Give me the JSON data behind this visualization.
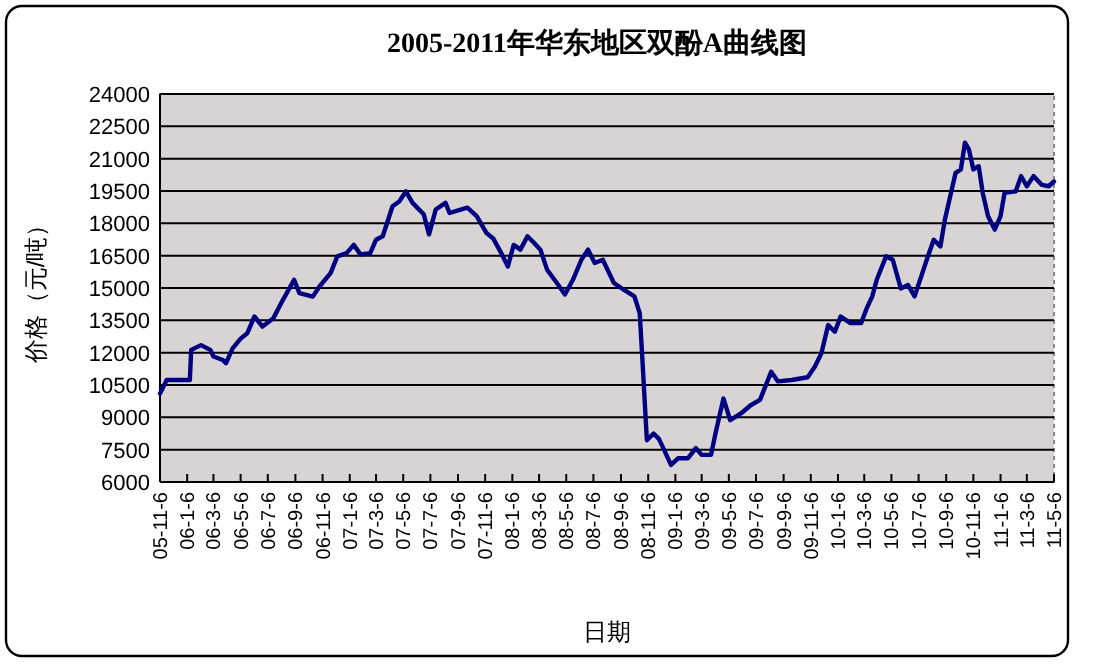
{
  "chart_data": {
    "type": "line",
    "title": "2005-2011年华东地区双酚A曲线图",
    "xlabel": "日期",
    "ylabel": "价格（元/吨）",
    "xlim": [
      "2005-11-06",
      "2011-05-06"
    ],
    "xticks": [
      {
        "value": "2005-11-06",
        "label": "05-11-6"
      },
      {
        "value": "2006-01-06",
        "label": "06-1-6"
      },
      {
        "value": "2006-03-06",
        "label": "06-3-6"
      },
      {
        "value": "2006-05-06",
        "label": "06-5-6"
      },
      {
        "value": "2006-07-06",
        "label": "06-7-6"
      },
      {
        "value": "2006-09-06",
        "label": "06-9-6"
      },
      {
        "value": "2006-11-06",
        "label": "06-11-6"
      },
      {
        "value": "2007-01-06",
        "label": "07-1-6"
      },
      {
        "value": "2007-03-06",
        "label": "07-3-6"
      },
      {
        "value": "2007-05-06",
        "label": "07-5-6"
      },
      {
        "value": "2007-07-06",
        "label": "07-7-6"
      },
      {
        "value": "2007-09-06",
        "label": "07-9-6"
      },
      {
        "value": "2007-11-06",
        "label": "07-11-6"
      },
      {
        "value": "2008-01-06",
        "label": "08-1-6"
      },
      {
        "value": "2008-03-06",
        "label": "08-3-6"
      },
      {
        "value": "2008-05-06",
        "label": "08-5-6"
      },
      {
        "value": "2008-07-06",
        "label": "08-7-6"
      },
      {
        "value": "2008-09-06",
        "label": "08-9-6"
      },
      {
        "value": "2008-11-06",
        "label": "08-11-6"
      },
      {
        "value": "2009-01-06",
        "label": "09-1-6"
      },
      {
        "value": "2009-03-06",
        "label": "09-3-6"
      },
      {
        "value": "2009-05-06",
        "label": "09-5-6"
      },
      {
        "value": "2009-07-06",
        "label": "09-7-6"
      },
      {
        "value": "2009-09-06",
        "label": "09-9-6"
      },
      {
        "value": "2009-11-06",
        "label": "09-11-6"
      },
      {
        "value": "2010-01-06",
        "label": "10-1-6"
      },
      {
        "value": "2010-03-06",
        "label": "10-3-6"
      },
      {
        "value": "2010-05-06",
        "label": "10-5-6"
      },
      {
        "value": "2010-07-06",
        "label": "10-7-6"
      },
      {
        "value": "2010-09-06",
        "label": "10-9-6"
      },
      {
        "value": "2010-11-06",
        "label": "10-11-6"
      },
      {
        "value": "2011-01-06",
        "label": "11-1-6"
      },
      {
        "value": "2011-03-06",
        "label": "11-3-6"
      },
      {
        "value": "2011-05-06",
        "label": "11-5-6"
      }
    ],
    "ylim": [
      6000,
      24000
    ],
    "yticks": [
      6000,
      7500,
      9000,
      10500,
      12000,
      13500,
      15000,
      16500,
      18000,
      19500,
      21000,
      22500,
      24000
    ],
    "grid": "y",
    "marker": "none",
    "line_style": "solid",
    "series": [
      {
        "color": "#000080",
        "x": [
          "2005-11-06",
          "2005-11-21",
          "2006-01-12",
          "2006-01-15",
          "2006-02-06",
          "2006-02-27",
          "2006-03-06",
          "2006-03-27",
          "2006-04-03",
          "2006-04-18",
          "2006-05-06",
          "2006-05-21",
          "2006-06-06",
          "2006-06-24",
          "2006-07-18",
          "2006-08-09",
          "2006-09-03",
          "2006-09-15",
          "2006-10-15",
          "2006-10-30",
          "2006-11-24",
          "2006-12-09",
          "2006-12-30",
          "2007-01-15",
          "2007-01-30",
          "2007-02-21",
          "2007-03-06",
          "2007-03-21",
          "2007-04-12",
          "2007-04-27",
          "2007-05-12",
          "2007-05-27",
          "2007-06-21",
          "2007-07-03",
          "2007-07-18",
          "2007-08-09",
          "2007-08-18",
          "2007-09-12",
          "2007-09-27",
          "2007-10-18",
          "2007-11-09",
          "2007-11-24",
          "2007-12-12",
          "2007-12-27",
          "2008-01-09",
          "2008-01-24",
          "2008-02-09",
          "2008-02-24",
          "2008-03-09",
          "2008-03-24",
          "2008-04-15",
          "2008-05-03",
          "2008-05-21",
          "2008-06-09",
          "2008-06-24",
          "2008-07-09",
          "2008-07-27",
          "2008-08-21",
          "2008-09-12",
          "2008-10-06",
          "2008-10-18",
          "2008-10-24",
          "2008-11-03",
          "2008-11-18",
          "2008-11-30",
          "2008-12-12",
          "2008-12-27",
          "2009-01-12",
          "2009-02-03",
          "2009-02-21",
          "2009-03-06",
          "2009-03-27",
          "2009-04-06",
          "2009-04-24",
          "2009-05-09",
          "2009-06-03",
          "2009-06-24",
          "2009-07-15",
          "2009-08-09",
          "2009-08-24",
          "2009-09-24",
          "2009-10-30",
          "2009-11-15",
          "2009-11-30",
          "2009-12-15",
          "2009-12-30",
          "2010-01-12",
          "2010-02-03",
          "2010-02-27",
          "2010-03-12",
          "2010-03-24",
          "2010-04-03",
          "2010-04-24",
          "2010-05-09",
          "2010-05-27",
          "2010-06-12",
          "2010-06-27",
          "2010-07-12",
          "2010-07-27",
          "2010-08-09",
          "2010-08-24",
          "2010-09-03",
          "2010-09-15",
          "2010-09-27",
          "2010-10-09",
          "2010-10-18",
          "2010-10-27",
          "2010-11-06",
          "2010-11-18",
          "2010-11-27",
          "2010-12-09",
          "2010-12-24",
          "2011-01-06",
          "2011-01-15",
          "2011-02-09",
          "2011-02-21",
          "2011-03-06",
          "2011-03-21",
          "2011-04-09",
          "2011-04-24",
          "2011-05-06"
        ],
        "values": [
          10100,
          10730,
          10730,
          12130,
          12350,
          12130,
          11820,
          11660,
          11510,
          12200,
          12650,
          12900,
          13680,
          13210,
          13580,
          14450,
          15380,
          14760,
          14600,
          15070,
          15690,
          16470,
          16620,
          17000,
          16560,
          16620,
          17240,
          17400,
          18790,
          19010,
          19480,
          18950,
          18420,
          17490,
          18640,
          18950,
          18480,
          18640,
          18730,
          18330,
          17550,
          17300,
          16620,
          16000,
          17000,
          16780,
          17400,
          17090,
          16780,
          15850,
          15230,
          14700,
          15380,
          16310,
          16780,
          16160,
          16310,
          15230,
          14920,
          14610,
          13830,
          11660,
          7940,
          8250,
          8000,
          7480,
          6790,
          7100,
          7100,
          7570,
          7260,
          7260,
          8250,
          9870,
          8870,
          9190,
          9560,
          9810,
          11110,
          10670,
          10730,
          10860,
          11350,
          11980,
          13280,
          12970,
          13680,
          13370,
          13370,
          14080,
          14610,
          15380,
          16470,
          16310,
          14980,
          15140,
          14610,
          15540,
          16470,
          17240,
          16930,
          18170,
          19260,
          20340,
          20500,
          21740,
          21430,
          20500,
          20650,
          19410,
          18330,
          17710,
          18330,
          19410,
          19480,
          20190,
          19720,
          20190,
          19780,
          19720,
          19940
        ]
      }
    ]
  }
}
